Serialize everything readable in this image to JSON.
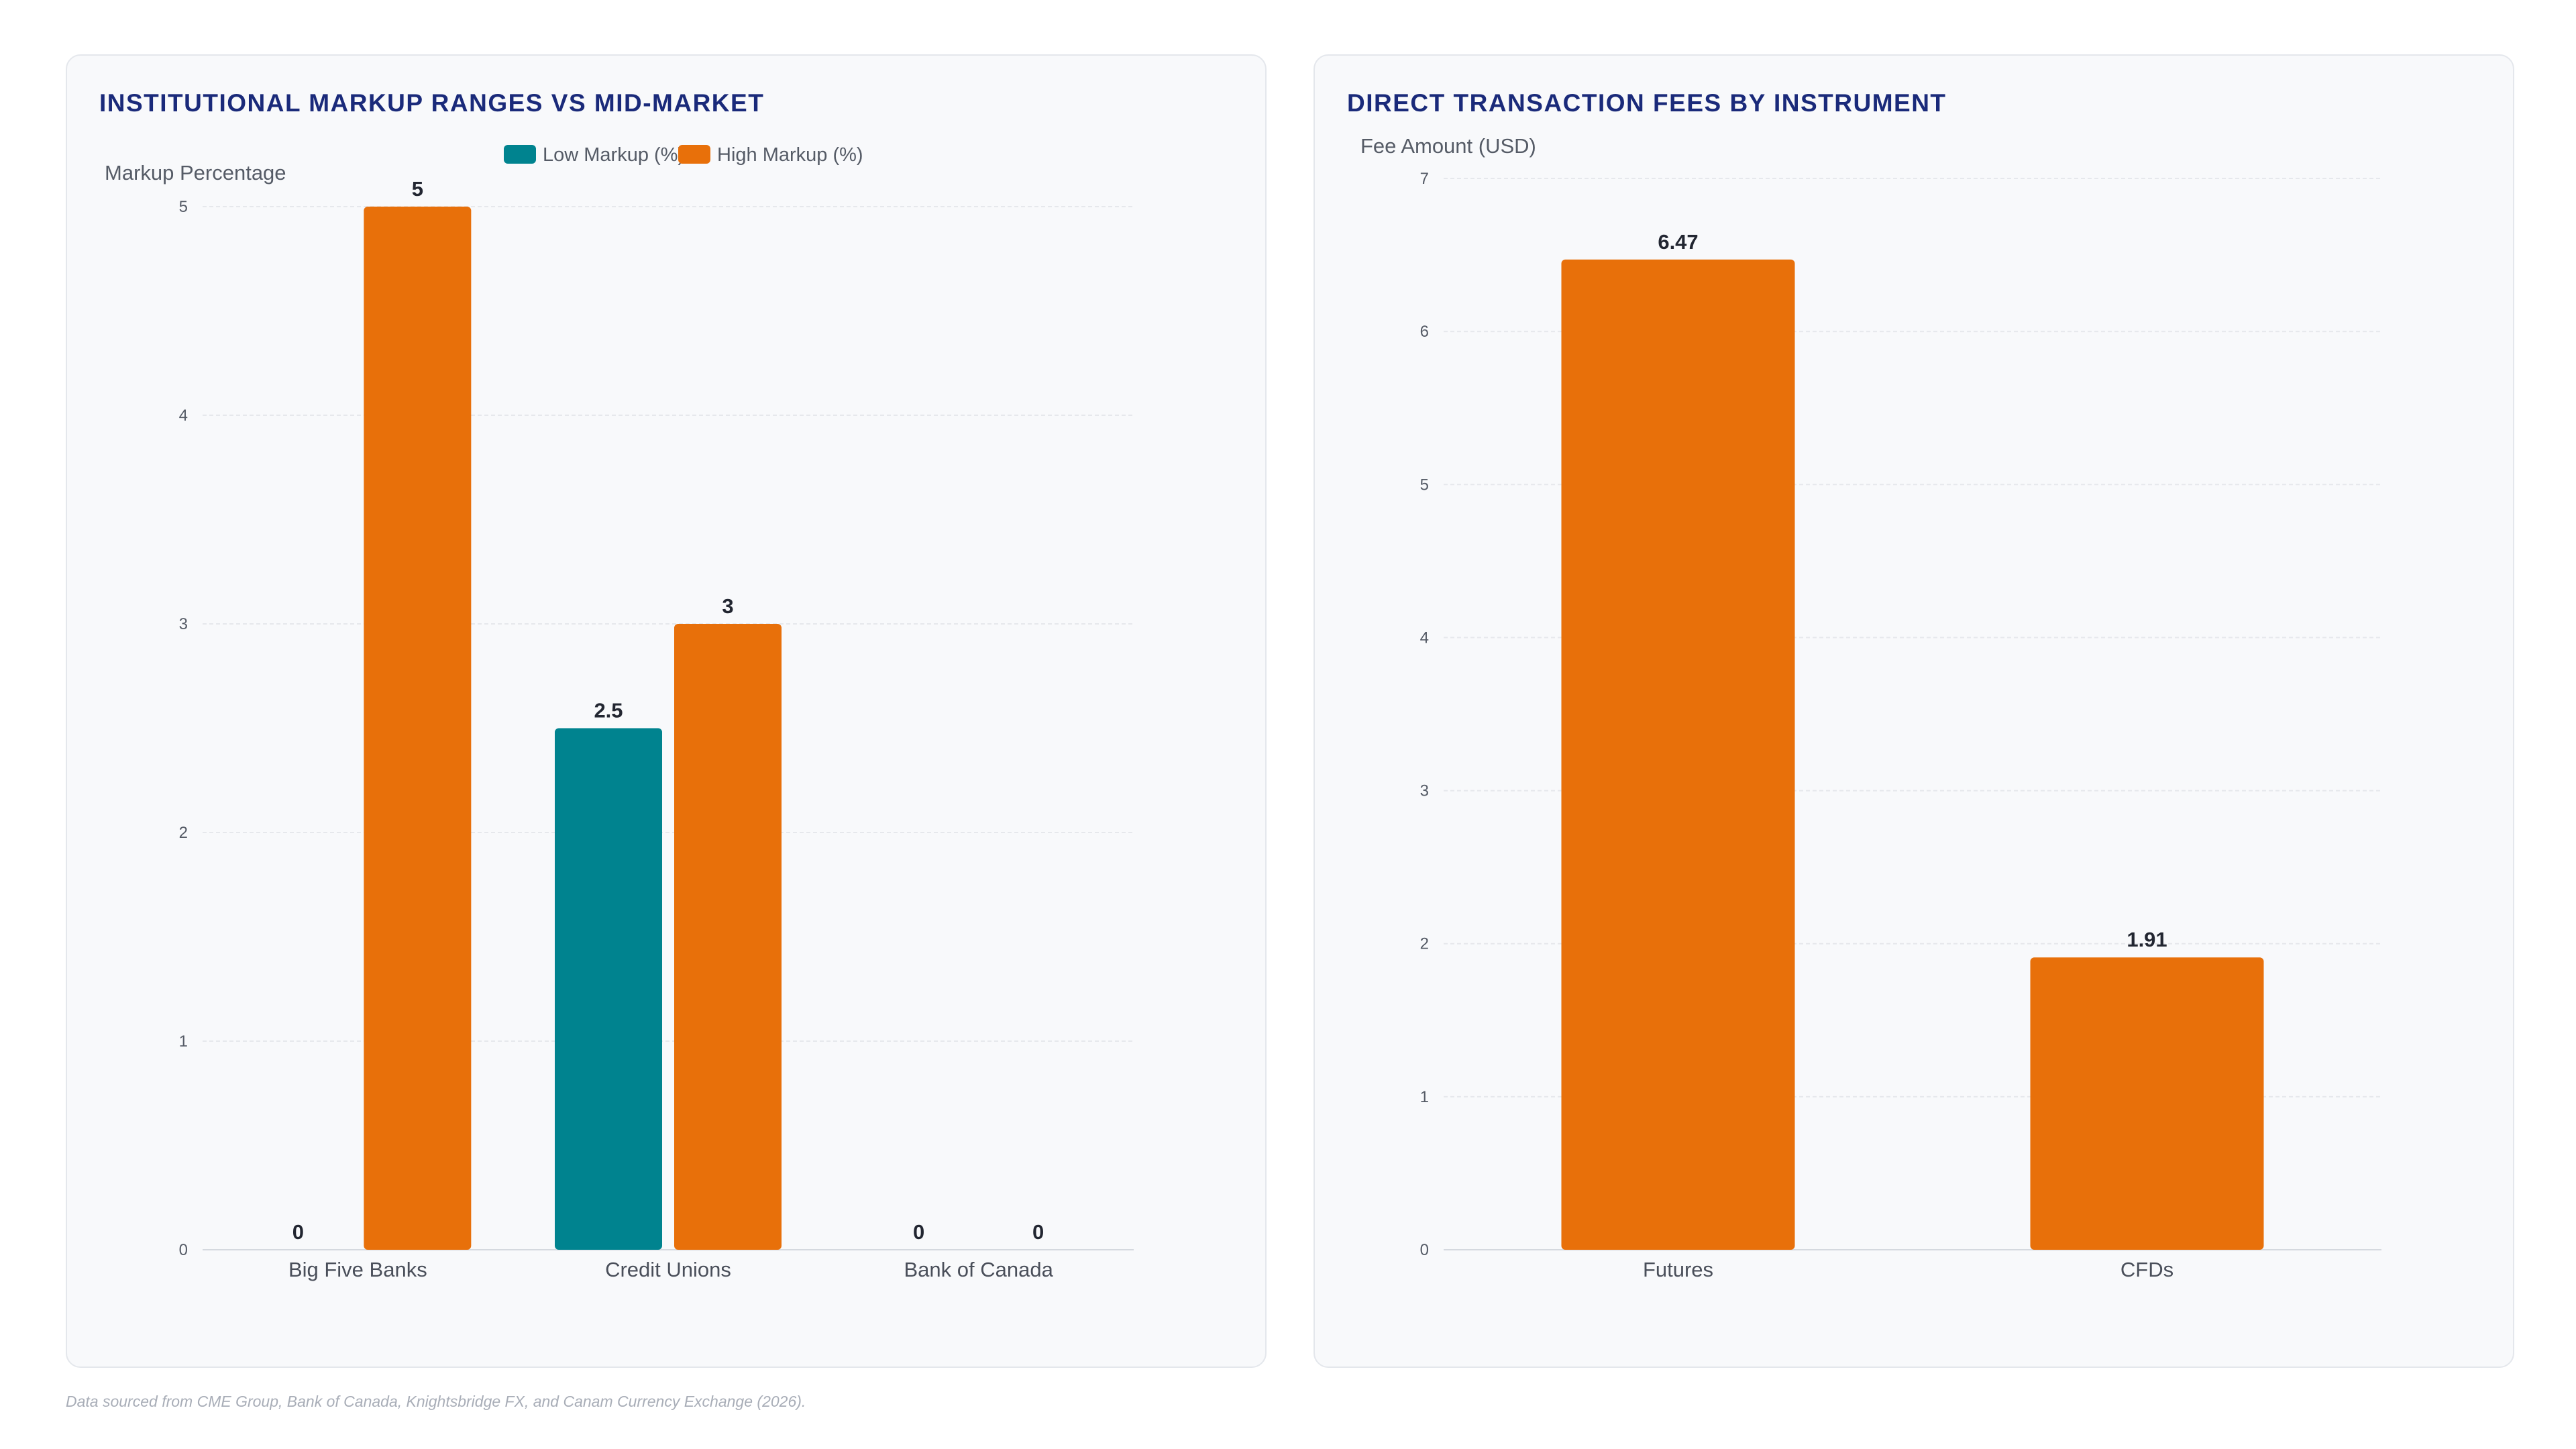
{
  "colors": {
    "low_markup": "#00838f",
    "high_markup": "#e8700a",
    "title": "#1a2a7a",
    "grid": "#e6e8ec"
  },
  "source_note": "Data sourced from CME Group, Bank of Canada, Knightsbridge FX, and Canam Currency Exchange (2026).",
  "chart_data": [
    {
      "type": "bar",
      "title": "INSTITUTIONAL MARKUP RANGES VS MID-MARKET",
      "ylabel": "Markup Percentage",
      "xlabel": "",
      "categories": [
        "Big Five Banks",
        "Credit Unions",
        "Bank of Canada"
      ],
      "series": [
        {
          "name": "Low Markup (%)",
          "values": [
            0,
            2.5,
            0
          ],
          "color": "#00838f"
        },
        {
          "name": "High Markup (%)",
          "values": [
            5,
            3,
            0
          ],
          "color": "#e8700a"
        }
      ],
      "ylim": [
        0,
        5
      ],
      "yticks": [
        0,
        1,
        2,
        3,
        4,
        5
      ],
      "legend": "top-center",
      "grid": true
    },
    {
      "type": "bar",
      "title": "DIRECT TRANSACTION FEES BY INSTRUMENT",
      "ylabel": "Fee Amount (USD)",
      "xlabel": "",
      "categories": [
        "Futures",
        "CFDs"
      ],
      "series": [
        {
          "values": [
            6.47,
            1.91
          ],
          "color": "#e8700a"
        }
      ],
      "ylim": [
        0,
        7
      ],
      "yticks": [
        0,
        1,
        2,
        3,
        4,
        5,
        6,
        7
      ],
      "grid": true
    }
  ]
}
